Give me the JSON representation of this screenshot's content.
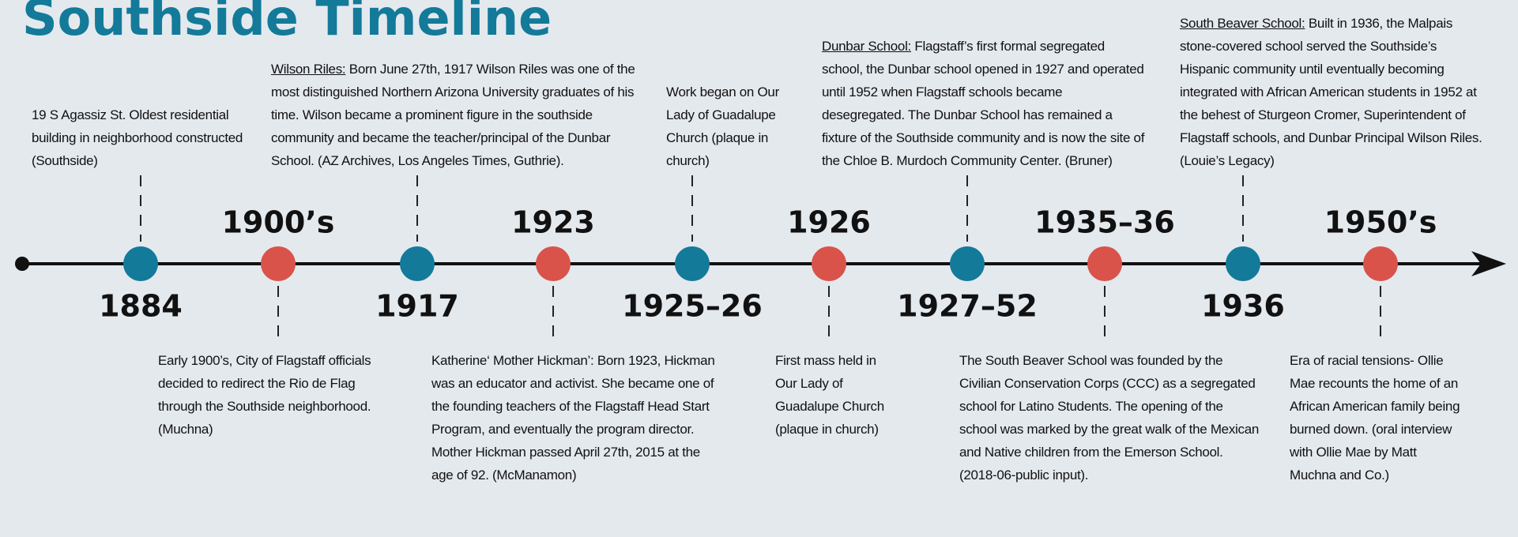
{
  "title": "Southside Timeline",
  "events": [
    {
      "year": "1884",
      "position": "above",
      "text": "19 S Agassiz St. Oldest residential building in neighborhood constructed (Southside)"
    },
    {
      "year": "1900’s",
      "position": "below",
      "text": "Early 1900’s, City of Flagstaff officials decided to redirect the Rio de Flag through the Southside neighborhood. (Muchna)"
    },
    {
      "year": "1917",
      "position": "above",
      "lead": "Wilson Riles:",
      "text": "Born June 27th, 1917 Wilson Riles was one of the most distinguished Northern Arizona University graduates of his time. Wilson became a prominent figure in the southside community and became the teacher/principal of the Dunbar School. (AZ Archives, Los Angeles Times, Guthrie)."
    },
    {
      "year": "1923",
      "position": "below",
      "text": "Katherine‘ Mother Hickman’: Born 1923, Hickman was an educator and activist. She became one of the founding teachers of the Flagstaff Head Start Program, and eventually the program director. Mother Hickman passed April 27th, 2015 at the age of 92. (McManamon)"
    },
    {
      "year": "1925–26",
      "position": "above",
      "text": "Work began on Our Lady of Guadalupe Church (plaque in church)"
    },
    {
      "year": "1926",
      "position": "below",
      "text": "First mass held in Our Lady of Guadalupe Church (plaque in church)"
    },
    {
      "year": "1927–52",
      "position": "above",
      "lead": "Dunbar School:",
      "text": "Flagstaff’s first formal segregated school, the Dunbar school opened in 1927 and operated until 1952 when Flagstaff schools became desegregated. The Dunbar School has remained a fixture of the Southside community and is now the site of the Chloe B. Murdoch Community Center. (Bruner)"
    },
    {
      "year": "1935–36",
      "position": "below",
      "text": "The South Beaver School was founded by the Civilian Conservation Corps (CCC) as a segregated school for Latino Students. The opening of the school was marked by the great walk of the Mexican and Native children from the Emerson School. (2018-06-public input)."
    },
    {
      "year": "1936",
      "position": "above",
      "lead": "South Beaver School:",
      "text": "Built in 1936, the Malpais stone-covered school served the Southside’s Hispanic community until eventually becoming integrated with African American students in 1952 at the behest of Sturgeon Cromer, Superintendent of Flagstaff schools, and Dunbar Principal Wilson Riles. (Louie’s Legacy)"
    },
    {
      "year": "1950’s",
      "position": "below",
      "text": "Era of racial tensions- Ollie Mae recounts the home of an African American family being burned down. (oral interview with Ollie Mae by Matt Muchna and Co.)"
    }
  ]
}
